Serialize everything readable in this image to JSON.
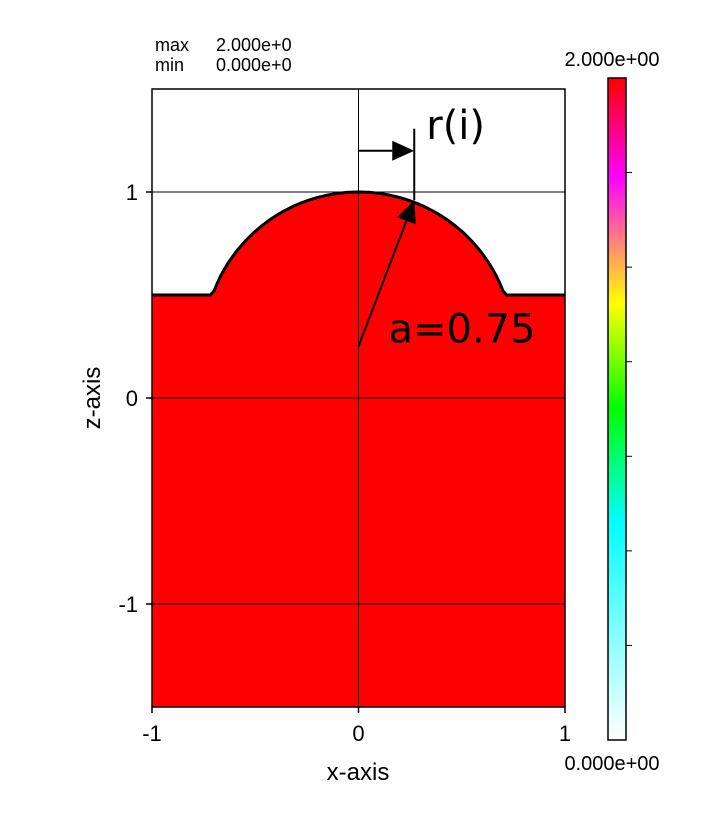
{
  "header": {
    "max_label": "max",
    "max_value": "2.000e+0",
    "min_label": "min",
    "min_value": "0.000e+0"
  },
  "colorbar": {
    "top_label": "2.000e+00",
    "bottom_label": "0.000e+00",
    "colors": [
      "#ffffff",
      "#00ffff",
      "#00ff00",
      "#ffff00",
      "#ff00ff",
      "#ff0000"
    ]
  },
  "chart_data": {
    "type": "heatmap",
    "xlabel": "x-axis",
    "ylabel": "z-axis",
    "xlim": [
      -1,
      1
    ],
    "ylim": [
      -1.5,
      1.5
    ],
    "xticks": [
      -1,
      0,
      1
    ],
    "yticks": [
      -1,
      0,
      1
    ],
    "x_tick_labels": [
      "-1",
      "0",
      "1"
    ],
    "y_tick_labels": [
      "-1",
      "0",
      "1"
    ],
    "grid": true,
    "fill_color": "#ff0000",
    "fill_value": 2.0,
    "empty_value": 0.0,
    "surface": {
      "flat_level": 0.5,
      "cap_radius": 0.75,
      "cap_center_z": 0.25,
      "cap_apex": 1.0
    },
    "annotations": {
      "radius_label": "a=0.75",
      "r_label": "r(i)",
      "r_point": {
        "x": 0.27,
        "z": 0.96
      },
      "radius_origin": {
        "x": 0.0,
        "z": 0.25
      }
    }
  }
}
